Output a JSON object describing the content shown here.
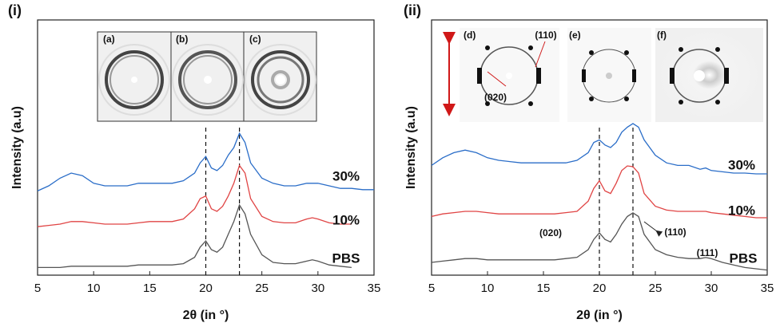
{
  "chart_data": [
    {
      "type": "line",
      "panel_label": "(i)",
      "xlabel": "2θ (in °)",
      "ylabel": "Intensity (a.u)",
      "x": [
        5,
        6,
        7,
        8,
        9,
        10,
        11,
        12,
        13,
        14,
        15,
        16,
        17,
        18,
        19,
        19.5,
        20,
        20.5,
        21,
        21.5,
        22,
        22.5,
        23,
        23.5,
        24,
        25,
        26,
        27,
        28,
        29,
        29.5,
        30,
        31,
        32,
        33,
        34,
        35
      ],
      "xlim": [
        5,
        35
      ],
      "xticks": [
        5,
        10,
        15,
        20,
        25,
        30,
        35
      ],
      "ylim": [
        0,
        100
      ],
      "vlines": [
        20,
        23
      ],
      "inset_labels": [
        "(a)",
        "(b)",
        "(c)"
      ],
      "annotations": [],
      "series": [
        {
          "name": "30%",
          "color": "#2a6dc8",
          "values": [
            33,
            35,
            38,
            40,
            39,
            36,
            35,
            35,
            35,
            36,
            36,
            36,
            36,
            37,
            40,
            44,
            46.5,
            42,
            41,
            43,
            47,
            50,
            55.6,
            52,
            44,
            38,
            36,
            35,
            35,
            36,
            36,
            36,
            35,
            34,
            34,
            33.5,
            33.5
          ]
        },
        {
          "name": "10%",
          "color": "#e04444",
          "values": [
            19,
            19.5,
            20,
            21,
            21,
            20.5,
            20,
            20,
            20,
            20.5,
            21,
            21,
            21,
            22,
            26,
            30,
            31,
            26,
            25,
            27,
            31,
            36,
            43,
            40,
            30,
            23,
            21,
            20.5,
            20.5,
            22,
            22.5,
            22,
            20.5,
            20,
            20,
            null,
            null
          ]
        },
        {
          "name": "PBS",
          "color": "#555555",
          "values": [
            3,
            3,
            3,
            3.5,
            3.5,
            3.5,
            3.5,
            3.5,
            3.5,
            4,
            4,
            4,
            4,
            4.5,
            7,
            11,
            13.4,
            10,
            9,
            11,
            16,
            21,
            27.5,
            24,
            16,
            8,
            5,
            4.5,
            4.5,
            5.5,
            6,
            5.5,
            4,
            3.5,
            3,
            null,
            null
          ]
        }
      ]
    },
    {
      "type": "line",
      "panel_label": "(ii)",
      "xlabel": "2θ (in °)",
      "ylabel": "Intensity (a.u)",
      "x": [
        5,
        6,
        7,
        8,
        9,
        10,
        11,
        12,
        13,
        14,
        15,
        16,
        17,
        18,
        19,
        19.5,
        20,
        20.5,
        21,
        21.5,
        22,
        22.5,
        23,
        23.5,
        24,
        25,
        26,
        27,
        28,
        29,
        29.5,
        30,
        31,
        32,
        33,
        34,
        35
      ],
      "xlim": [
        5,
        35
      ],
      "xticks": [
        5,
        10,
        15,
        20,
        25,
        30,
        35
      ],
      "ylim": [
        0,
        100
      ],
      "vlines": [
        20,
        23
      ],
      "inset_labels": [
        "(d)",
        "(e)",
        "(f)"
      ],
      "annotations": [
        "(110)",
        "(020)",
        "(020)",
        "(110)",
        "(111)"
      ],
      "series": [
        {
          "name": "30%",
          "color": "#2a6dc8",
          "values": [
            43,
            46,
            48,
            49,
            48,
            46,
            45,
            44.5,
            44,
            44,
            44,
            44,
            44,
            45,
            48,
            52,
            53,
            51,
            50,
            52,
            56,
            58,
            59.4,
            58,
            53,
            47,
            44,
            43,
            43,
            41.5,
            42,
            41,
            40.5,
            40,
            40,
            39.7,
            39.7
          ]
        },
        {
          "name": "10%",
          "color": "#e04444",
          "values": [
            23,
            24,
            24.5,
            25,
            25,
            24.5,
            24,
            24,
            24,
            24,
            24,
            24,
            24.5,
            25,
            29,
            34,
            37,
            33,
            32,
            36,
            41,
            42.8,
            42.5,
            40,
            32,
            27,
            25.5,
            25,
            25,
            25,
            25,
            24.5,
            24,
            23.5,
            23,
            22.5,
            22.5
          ]
        },
        {
          "name": "PBS",
          "color": "#555555",
          "values": [
            5,
            5.5,
            6,
            6.5,
            6.5,
            6,
            6,
            6,
            6,
            6,
            6,
            6,
            6.5,
            7,
            10,
            14,
            16.6,
            14,
            13,
            16,
            20,
            23,
            24.4,
            23,
            16,
            10,
            8,
            7,
            6.5,
            6.5,
            6.9,
            6.5,
            5,
            4,
            3,
            2.5,
            2
          ]
        }
      ]
    }
  ]
}
